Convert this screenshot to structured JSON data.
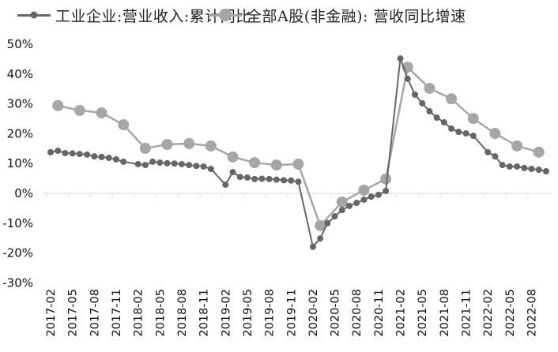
{
  "chart_data": {
    "type": "line",
    "title": "",
    "xlabel": "",
    "ylabel": "",
    "ylim": [
      -0.3,
      0.5
    ],
    "yticks": [
      "50%",
      "40%",
      "30%",
      "20%",
      "10%",
      "0%",
      "-10%",
      "-20%",
      "-30%"
    ],
    "ytick_values": [
      0.5,
      0.4,
      0.3,
      0.2,
      0.1,
      0.0,
      -0.1,
      -0.2,
      -0.3
    ],
    "xticks": [
      "2017-02",
      "2017-05",
      "2017-08",
      "2017-11",
      "2018-02",
      "2018-05",
      "2018-08",
      "2018-11",
      "2019-02",
      "2019-05",
      "2019-08",
      "2019-11",
      "2020-02",
      "2020-05",
      "2020-08",
      "2020-11",
      "2021-02",
      "2021-05",
      "2021-08",
      "2021-11",
      "2022-02",
      "2022-05",
      "2022-08"
    ],
    "legend_position": "top",
    "grid": false,
    "series": [
      {
        "name": "工业企业:营业收入:累计同比",
        "color": "#666666",
        "marker_size": 4,
        "x": [
          "2017-02",
          "2017-03",
          "2017-04",
          "2017-05",
          "2017-06",
          "2017-07",
          "2017-08",
          "2017-09",
          "2017-10",
          "2017-11",
          "2017-12",
          "2018-02",
          "2018-03",
          "2018-04",
          "2018-05",
          "2018-06",
          "2018-07",
          "2018-08",
          "2018-09",
          "2018-10",
          "2018-11",
          "2018-12",
          "2019-02",
          "2019-03",
          "2019-04",
          "2019-05",
          "2019-06",
          "2019-07",
          "2019-08",
          "2019-09",
          "2019-10",
          "2019-11",
          "2019-12",
          "2020-02",
          "2020-03",
          "2020-04",
          "2020-05",
          "2020-06",
          "2020-07",
          "2020-08",
          "2020-09",
          "2020-10",
          "2020-11",
          "2020-12",
          "2021-02",
          "2021-03",
          "2021-04",
          "2021-05",
          "2021-06",
          "2021-07",
          "2021-08",
          "2021-09",
          "2021-10",
          "2021-11",
          "2021-12",
          "2022-02",
          "2022-03",
          "2022-04",
          "2022-05",
          "2022-06",
          "2022-07",
          "2022-08",
          "2022-09",
          "2022-10"
        ],
        "values": [
          13.8,
          14.3,
          13.5,
          13.4,
          13.2,
          13.0,
          12.4,
          12.2,
          11.9,
          11.4,
          10.6,
          9.8,
          9.5,
          10.6,
          10.3,
          10.1,
          10.0,
          9.8,
          9.5,
          9.2,
          9.0,
          8.2,
          2.9,
          7.1,
          5.5,
          5.3,
          4.8,
          4.9,
          4.8,
          4.6,
          4.4,
          4.3,
          3.9,
          -17.9,
          -15.1,
          -10.0,
          -7.7,
          -5.6,
          -4.2,
          -3.2,
          -2.1,
          -1.1,
          -0.5,
          0.8,
          45.2,
          38.4,
          33.1,
          30.2,
          27.5,
          25.4,
          23.8,
          21.7,
          20.6,
          20.1,
          19.3,
          13.8,
          12.4,
          9.5,
          9.0,
          9.0,
          8.5,
          8.2,
          7.9,
          7.4
        ]
      },
      {
        "name": "全部A股(非金融): 营收同比增速",
        "color": "#a6a6a6",
        "marker_size": 7,
        "x": [
          "2017-03",
          "2017-06",
          "2017-09",
          "2017-12",
          "2018-03",
          "2018-06",
          "2018-09",
          "2018-12",
          "2019-03",
          "2019-06",
          "2019-09",
          "2019-12",
          "2020-03",
          "2020-06",
          "2020-09",
          "2020-12",
          "2021-03",
          "2021-06",
          "2021-09",
          "2021-12",
          "2022-03",
          "2022-06",
          "2022-09"
        ],
        "values": [
          29.4,
          27.8,
          27.0,
          23.0,
          15.1,
          16.4,
          16.7,
          15.9,
          12.2,
          10.3,
          9.5,
          9.8,
          -10.8,
          -2.9,
          1.1,
          4.8,
          42.3,
          35.2,
          31.7,
          25.1,
          20.1,
          15.9,
          13.8
        ]
      }
    ]
  },
  "legend": {
    "items": [
      {
        "label": "工业企业:营业收入:累计同比",
        "color": "#666666"
      },
      {
        "label": "全部A股(非金融): 营收同比增速",
        "color": "#a6a6a6"
      }
    ]
  }
}
